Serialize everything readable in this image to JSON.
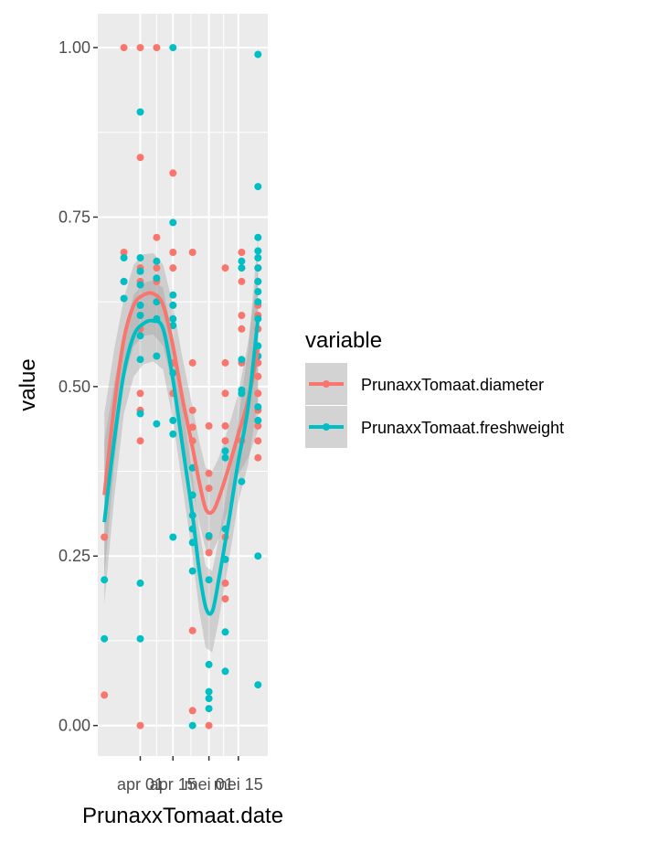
{
  "chart_data": {
    "type": "scatter",
    "title": "",
    "xlabel": "PrunaxxTomaat.date",
    "ylabel": "value",
    "ylim": [
      -0.045,
      1.05
    ],
    "yticks": [
      0.0,
      0.25,
      0.5,
      0.75,
      1.0
    ],
    "ytick_labels": [
      "0.00",
      "0.25",
      "0.50",
      "0.75",
      "1.00"
    ],
    "xlim": [
      -2,
      50
    ],
    "xticks": [
      11,
      21,
      32,
      41
    ],
    "xtick_labels": [
      "apr 01",
      "apr 15",
      "mei 01",
      "mei 15"
    ],
    "grid": true,
    "legend": {
      "title": "variable",
      "position": "right",
      "entries": [
        "PrunaxxTomaat.diameter",
        "PrunaxxTomaat.freshweight"
      ]
    },
    "series": [
      {
        "name": "PrunaxxTomaat.diameter",
        "color": "#F8766D",
        "points": [
          [
            0,
            0.278
          ],
          [
            0,
            0.045
          ],
          [
            6,
            1.0
          ],
          [
            6,
            0.698
          ],
          [
            6,
            0.655
          ],
          [
            11,
            1.0
          ],
          [
            11,
            0.838
          ],
          [
            11,
            0.675
          ],
          [
            11,
            0.655
          ],
          [
            11,
            0.62
          ],
          [
            11,
            0.585
          ],
          [
            11,
            0.49
          ],
          [
            11,
            0.465
          ],
          [
            11,
            0.42
          ],
          [
            11,
            0.0
          ],
          [
            16,
            1.0
          ],
          [
            16,
            0.72
          ],
          [
            16,
            0.675
          ],
          [
            16,
            0.655
          ],
          [
            21,
            0.815
          ],
          [
            21,
            0.698
          ],
          [
            21,
            0.675
          ],
          [
            21,
            0.62
          ],
          [
            21,
            0.535
          ],
          [
            21,
            0.49
          ],
          [
            27,
            0.698
          ],
          [
            27,
            0.535
          ],
          [
            27,
            0.465
          ],
          [
            27,
            0.44
          ],
          [
            27,
            0.42
          ],
          [
            27,
            0.14
          ],
          [
            27,
            0.022
          ],
          [
            32,
            0.442
          ],
          [
            32,
            0.372
          ],
          [
            32,
            0.35
          ],
          [
            32,
            0.278
          ],
          [
            32,
            0.255
          ],
          [
            32,
            0.0
          ],
          [
            37,
            0.675
          ],
          [
            37,
            0.535
          ],
          [
            37,
            0.49
          ],
          [
            37,
            0.442
          ],
          [
            37,
            0.42
          ],
          [
            37,
            0.278
          ],
          [
            37,
            0.21
          ],
          [
            37,
            0.187
          ],
          [
            42,
            0.698
          ],
          [
            42,
            0.675
          ],
          [
            42,
            0.655
          ],
          [
            42,
            0.605
          ],
          [
            42,
            0.585
          ],
          [
            42,
            0.535
          ],
          [
            42,
            0.49
          ],
          [
            42,
            0.42
          ],
          [
            47,
            0.675
          ],
          [
            47,
            0.655
          ],
          [
            47,
            0.62
          ],
          [
            47,
            0.605
          ],
          [
            47,
            0.585
          ],
          [
            47,
            0.535
          ],
          [
            47,
            0.515
          ],
          [
            47,
            0.49
          ],
          [
            47,
            0.465
          ],
          [
            47,
            0.442
          ],
          [
            47,
            0.42
          ],
          [
            47,
            0.395
          ]
        ],
        "smooth": [
          [
            0,
            0.34
          ],
          [
            3,
            0.47
          ],
          [
            6,
            0.57
          ],
          [
            9,
            0.62
          ],
          [
            12,
            0.635
          ],
          [
            15,
            0.637
          ],
          [
            18,
            0.62
          ],
          [
            21,
            0.56
          ],
          [
            24,
            0.48
          ],
          [
            27,
            0.41
          ],
          [
            29,
            0.36
          ],
          [
            31,
            0.32
          ],
          [
            33,
            0.315
          ],
          [
            35,
            0.335
          ],
          [
            38,
            0.38
          ],
          [
            41,
            0.43
          ],
          [
            44,
            0.48
          ],
          [
            47,
            0.555
          ]
        ]
      },
      {
        "name": "PrunaxxTomaat.freshweight",
        "color": "#00BFC4",
        "points": [
          [
            0,
            0.215
          ],
          [
            0,
            0.128
          ],
          [
            6,
            0.69
          ],
          [
            6,
            0.655
          ],
          [
            6,
            0.63
          ],
          [
            11,
            0.905
          ],
          [
            11,
            0.69
          ],
          [
            11,
            0.67
          ],
          [
            11,
            0.65
          ],
          [
            11,
            0.62
          ],
          [
            11,
            0.605
          ],
          [
            11,
            0.575
          ],
          [
            11,
            0.54
          ],
          [
            11,
            0.46
          ],
          [
            11,
            0.21
          ],
          [
            11,
            0.128
          ],
          [
            16,
            0.685
          ],
          [
            16,
            0.66
          ],
          [
            16,
            0.625
          ],
          [
            16,
            0.6
          ],
          [
            16,
            0.545
          ],
          [
            16,
            0.445
          ],
          [
            21,
            1.0
          ],
          [
            21,
            0.742
          ],
          [
            21,
            0.635
          ],
          [
            21,
            0.62
          ],
          [
            21,
            0.6
          ],
          [
            21,
            0.59
          ],
          [
            21,
            0.52
          ],
          [
            21,
            0.45
          ],
          [
            21,
            0.43
          ],
          [
            21,
            0.278
          ],
          [
            27,
            0.38
          ],
          [
            27,
            0.34
          ],
          [
            27,
            0.31
          ],
          [
            27,
            0.29
          ],
          [
            27,
            0.27
          ],
          [
            27,
            0.228
          ],
          [
            27,
            0.0
          ],
          [
            32,
            0.28
          ],
          [
            32,
            0.215
          ],
          [
            32,
            0.09
          ],
          [
            32,
            0.05
          ],
          [
            32,
            0.04
          ],
          [
            32,
            0.025
          ],
          [
            37,
            0.405
          ],
          [
            37,
            0.395
          ],
          [
            37,
            0.29
          ],
          [
            37,
            0.245
          ],
          [
            37,
            0.138
          ],
          [
            37,
            0.08
          ],
          [
            42,
            0.685
          ],
          [
            42,
            0.675
          ],
          [
            42,
            0.54
          ],
          [
            42,
            0.495
          ],
          [
            42,
            0.49
          ],
          [
            42,
            0.36
          ],
          [
            47,
            0.99
          ],
          [
            47,
            0.795
          ],
          [
            47,
            0.72
          ],
          [
            47,
            0.7
          ],
          [
            47,
            0.69
          ],
          [
            47,
            0.675
          ],
          [
            47,
            0.655
          ],
          [
            47,
            0.64
          ],
          [
            47,
            0.625
          ],
          [
            47,
            0.6
          ],
          [
            47,
            0.56
          ],
          [
            47,
            0.545
          ],
          [
            47,
            0.47
          ],
          [
            47,
            0.45
          ],
          [
            47,
            0.25
          ],
          [
            47,
            0.06
          ]
        ],
        "smooth": [
          [
            0,
            0.3
          ],
          [
            3,
            0.42
          ],
          [
            6,
            0.52
          ],
          [
            9,
            0.575
          ],
          [
            12,
            0.593
          ],
          [
            15,
            0.597
          ],
          [
            18,
            0.585
          ],
          [
            21,
            0.51
          ],
          [
            24,
            0.41
          ],
          [
            27,
            0.31
          ],
          [
            29,
            0.23
          ],
          [
            31,
            0.175
          ],
          [
            33,
            0.168
          ],
          [
            35,
            0.215
          ],
          [
            38,
            0.3
          ],
          [
            41,
            0.39
          ],
          [
            44,
            0.47
          ],
          [
            47,
            0.6
          ]
        ]
      }
    ]
  }
}
